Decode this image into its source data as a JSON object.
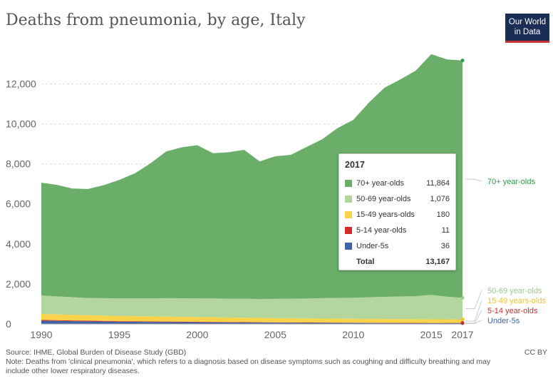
{
  "title": "Deaths from pneumonia, by age, Italy",
  "logo": {
    "line1": "Our World",
    "line2": "in Data",
    "bg_color": "#1a2d55",
    "accent_color": "#c8332f"
  },
  "footer": {
    "source": "Source: IHME, Global Burden of Disease Study (GBD)",
    "note": "Note: Deaths from 'clinical pneumonia', which refers to a diagnosis based on disease symptoms such as coughing and difficulty breathing and may include other lower respiratory diseases.",
    "license": "CC BY"
  },
  "tooltip": {
    "year": "2017",
    "rows": [
      {
        "label": "70+ year-olds",
        "value": "11,864",
        "color": "#6aae6a"
      },
      {
        "label": "50-69 year-olds",
        "value": "1,076",
        "color": "#b3d69f"
      },
      {
        "label": "15-49 years-olds",
        "value": "180",
        "color": "#f9d44b"
      },
      {
        "label": "5-14 year-olds",
        "value": "11",
        "color": "#cf2c2a"
      },
      {
        "label": "Under-5s",
        "value": "36",
        "color": "#3d64a8"
      }
    ],
    "total_label": "Total",
    "total_value": "13,167"
  },
  "chart_data": {
    "type": "area",
    "stacked": true,
    "x": [
      1990,
      1991,
      1992,
      1993,
      1994,
      1995,
      1996,
      1997,
      1998,
      1999,
      2000,
      2001,
      2002,
      2003,
      2004,
      2005,
      2006,
      2007,
      2008,
      2009,
      2010,
      2011,
      2012,
      2013,
      2014,
      2015,
      2016,
      2017
    ],
    "series": [
      {
        "name": "Under-5s",
        "color": "#3d64a8",
        "label_color": "#3d64a8",
        "values": [
          160,
          150,
          140,
          130,
          120,
          110,
          105,
          100,
          95,
          90,
          85,
          80,
          75,
          70,
          66,
          62,
          58,
          55,
          52,
          50,
          48,
          46,
          44,
          42,
          40,
          38,
          37,
          36
        ]
      },
      {
        "name": "5-14 year-olds",
        "color": "#cf2c2a",
        "label_color": "#cf2c2a",
        "values": [
          40,
          38,
          36,
          34,
          32,
          30,
          28,
          27,
          26,
          25,
          24,
          23,
          22,
          21,
          20,
          19,
          18,
          17,
          16,
          15,
          15,
          14,
          13,
          13,
          12,
          12,
          11,
          11
        ]
      },
      {
        "name": "15-49 years-olds",
        "color": "#f9d44b",
        "label_color": "#f0c420",
        "values": [
          300,
          290,
          280,
          270,
          265,
          260,
          255,
          250,
          245,
          240,
          235,
          230,
          225,
          220,
          215,
          210,
          205,
          200,
          198,
          196,
          194,
          192,
          190,
          188,
          186,
          184,
          182,
          180
        ]
      },
      {
        "name": "50-69 year-olds",
        "color": "#b3d69f",
        "label_color": "#9cc98a",
        "values": [
          920,
          900,
          880,
          860,
          870,
          880,
          890,
          900,
          920,
          930,
          930,
          940,
          940,
          950,
          940,
          960,
          980,
          1000,
          1020,
          1040,
          1050,
          1080,
          1110,
          1130,
          1150,
          1220,
          1130,
          1076
        ]
      },
      {
        "name": "70+ year-olds",
        "color": "#6aae6a",
        "label_color": "#2f9a45",
        "values": [
          5640,
          5570,
          5430,
          5450,
          5650,
          5920,
          6250,
          6750,
          7330,
          7540,
          7660,
          7260,
          7320,
          7440,
          6880,
          7130,
          7190,
          7570,
          7940,
          8490,
          8890,
          9730,
          10450,
          10840,
          11270,
          12030,
          11860,
          11864
        ]
      }
    ],
    "ylim": [
      0,
      13800
    ],
    "yticks": [
      0,
      2000,
      4000,
      6000,
      8000,
      10000,
      12000
    ],
    "ytick_labels": [
      "0",
      "2,000",
      "4,000",
      "6,000",
      "8,000",
      "10,000",
      "12,000"
    ],
    "xticks": [
      1990,
      1995,
      2000,
      2005,
      2010,
      2015,
      2017
    ],
    "xtick_labels": [
      "1990",
      "1995",
      "2000",
      "2005",
      "2010",
      "2015",
      "2017"
    ],
    "grid": true,
    "legend": "right-end labels"
  }
}
